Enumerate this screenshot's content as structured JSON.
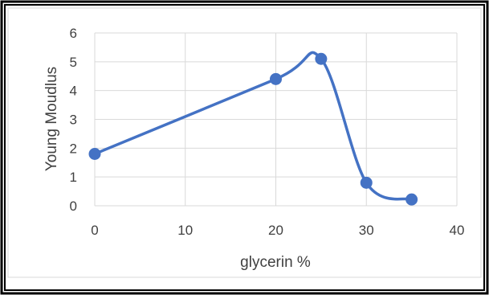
{
  "chart_data": {
    "type": "scatter",
    "smoothed_lines": true,
    "xlabel": "glycerin %",
    "ylabel": "Young Moudlus",
    "xlim": [
      0,
      40
    ],
    "ylim": [
      0,
      6
    ],
    "x_ticks": [
      0,
      10,
      20,
      30,
      40
    ],
    "y_ticks": [
      0,
      1,
      2,
      3,
      4,
      5,
      6
    ],
    "grid": true,
    "legend": "none",
    "series": [
      {
        "color": "#4472C4",
        "points": [
          {
            "x": 0,
            "y": 1.8
          },
          {
            "x": 20,
            "y": 4.4
          },
          {
            "x": 25,
            "y": 5.1
          },
          {
            "x": 30,
            "y": 0.8
          },
          {
            "x": 35,
            "y": 0.22
          }
        ]
      }
    ]
  }
}
